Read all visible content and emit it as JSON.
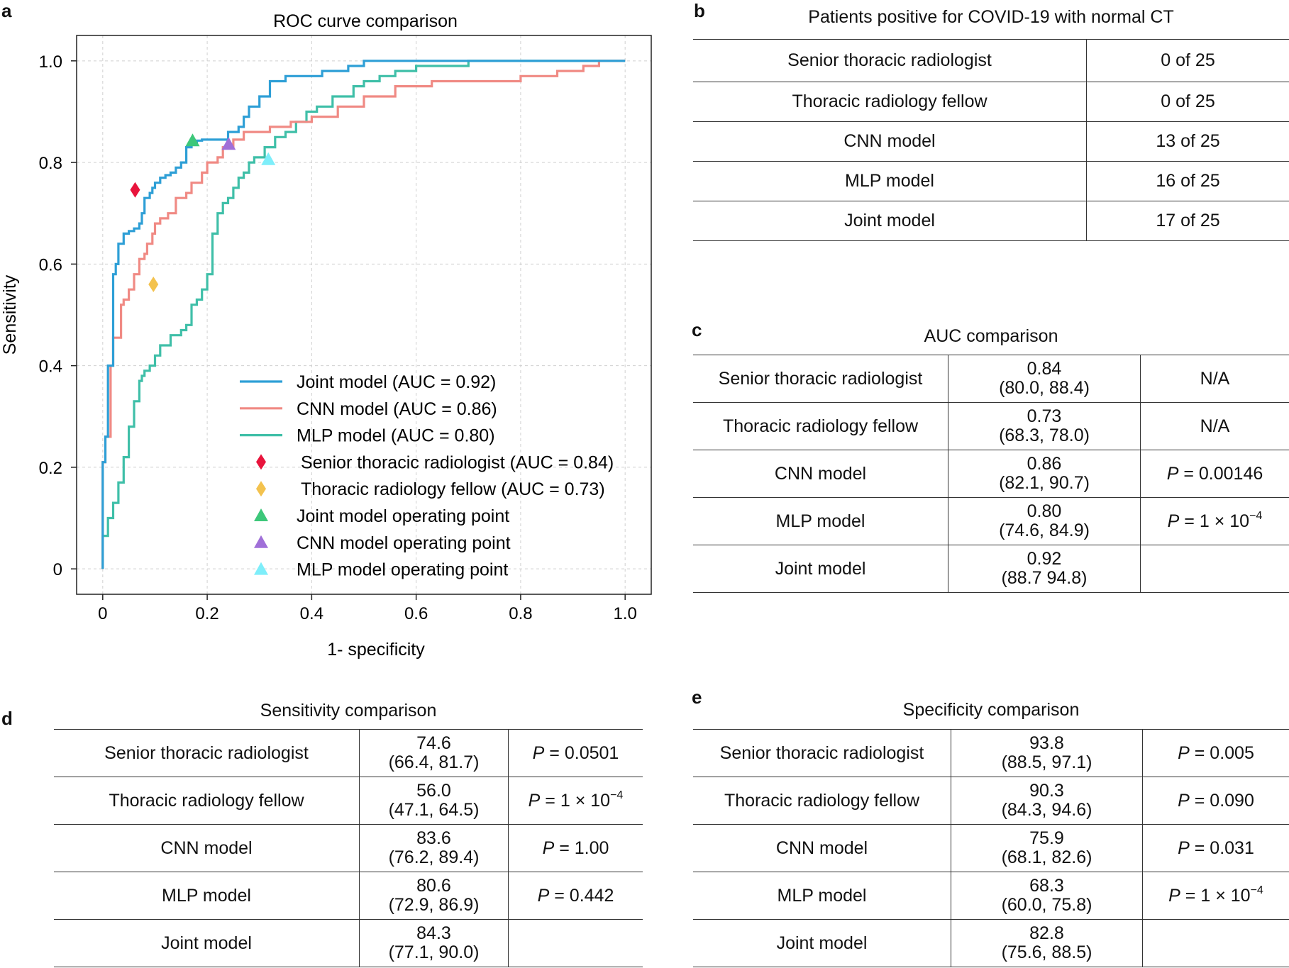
{
  "panels": {
    "a": "a",
    "b": "b",
    "c": "c",
    "d": "d",
    "e": "e"
  },
  "chart_data": {
    "type": "line",
    "title": "ROC curve comparison",
    "xlabel": "1- specificity",
    "ylabel": "Sensitivity",
    "xlim": [
      -0.05,
      1.05
    ],
    "ylim": [
      -0.05,
      1.05
    ],
    "xticks": [
      0,
      0.2,
      0.4,
      0.6,
      0.8,
      1.0
    ],
    "xtick_labels": [
      "0",
      "0.2",
      "0.4",
      "0.6",
      "0.8",
      "1.0"
    ],
    "yticks": [
      0,
      0.2,
      0.4,
      0.6,
      0.8,
      1.0
    ],
    "ytick_labels": [
      "0",
      "0.2",
      "0.4",
      "0.6",
      "0.8",
      "1.0"
    ],
    "grid": true,
    "legend_position": "lower-right",
    "series": [
      {
        "name": "Joint model (AUC = 0.92)",
        "color": "#2e9fd6",
        "x": [
          0,
          0,
          0.005,
          0.005,
          0.01,
          0.01,
          0.02,
          0.02,
          0.025,
          0.025,
          0.03,
          0.03,
          0.04,
          0.04,
          0.05,
          0.05,
          0.06,
          0.06,
          0.07,
          0.07,
          0.075,
          0.075,
          0.08,
          0.08,
          0.09,
          0.09,
          0.095,
          0.095,
          0.1,
          0.1,
          0.11,
          0.11,
          0.12,
          0.12,
          0.13,
          0.13,
          0.14,
          0.14,
          0.15,
          0.15,
          0.16,
          0.16,
          0.17,
          0.17,
          0.18,
          0.18,
          0.19,
          0.19,
          0.2,
          0.2,
          0.22,
          0.22,
          0.24,
          0.24,
          0.26,
          0.26,
          0.27,
          0.27,
          0.28,
          0.28,
          0.3,
          0.3,
          0.32,
          0.32,
          0.35,
          0.35,
          0.38,
          0.38,
          0.42,
          0.42,
          0.47,
          0.47,
          0.5,
          0.5,
          0.6,
          0.6,
          1.0
        ],
        "y": [
          0,
          0.21,
          0.21,
          0.26,
          0.26,
          0.4,
          0.4,
          0.58,
          0.58,
          0.6,
          0.6,
          0.64,
          0.64,
          0.66,
          0.66,
          0.665,
          0.665,
          0.67,
          0.67,
          0.68,
          0.68,
          0.7,
          0.7,
          0.73,
          0.73,
          0.74,
          0.74,
          0.75,
          0.75,
          0.76,
          0.76,
          0.77,
          0.77,
          0.775,
          0.775,
          0.78,
          0.78,
          0.79,
          0.79,
          0.8,
          0.8,
          0.83,
          0.83,
          0.84,
          0.84,
          0.843,
          0.843,
          0.845,
          0.845,
          0.845,
          0.845,
          0.845,
          0.845,
          0.86,
          0.86,
          0.87,
          0.87,
          0.89,
          0.89,
          0.91,
          0.91,
          0.93,
          0.93,
          0.96,
          0.96,
          0.97,
          0.97,
          0.97,
          0.97,
          0.98,
          0.98,
          0.99,
          0.99,
          1.0,
          1.0,
          1.0,
          1.0
        ]
      },
      {
        "name": "CNN model (AUC = 0.86)",
        "color": "#f08a84",
        "x": [
          0,
          0,
          0.005,
          0.005,
          0.015,
          0.015,
          0.02,
          0.02,
          0.035,
          0.035,
          0.04,
          0.04,
          0.05,
          0.05,
          0.06,
          0.06,
          0.07,
          0.07,
          0.08,
          0.08,
          0.085,
          0.085,
          0.095,
          0.095,
          0.1,
          0.1,
          0.11,
          0.11,
          0.125,
          0.125,
          0.14,
          0.14,
          0.16,
          0.16,
          0.17,
          0.17,
          0.19,
          0.19,
          0.2,
          0.2,
          0.22,
          0.22,
          0.23,
          0.23,
          0.25,
          0.25,
          0.27,
          0.27,
          0.29,
          0.29,
          0.32,
          0.32,
          0.36,
          0.36,
          0.4,
          0.4,
          0.45,
          0.45,
          0.5,
          0.5,
          0.56,
          0.56,
          0.63,
          0.63,
          0.73,
          0.73,
          0.8,
          0.8,
          0.87,
          0.87,
          0.92,
          0.92,
          0.95,
          0.95,
          1.0
        ],
        "y": [
          0,
          0.21,
          0.21,
          0.26,
          0.26,
          0.4,
          0.4,
          0.455,
          0.455,
          0.52,
          0.52,
          0.53,
          0.53,
          0.55,
          0.55,
          0.58,
          0.58,
          0.61,
          0.61,
          0.62,
          0.62,
          0.64,
          0.64,
          0.66,
          0.66,
          0.68,
          0.68,
          0.69,
          0.69,
          0.7,
          0.7,
          0.73,
          0.73,
          0.74,
          0.74,
          0.76,
          0.76,
          0.78,
          0.78,
          0.8,
          0.8,
          0.81,
          0.81,
          0.83,
          0.83,
          0.845,
          0.845,
          0.86,
          0.86,
          0.86,
          0.86,
          0.87,
          0.87,
          0.88,
          0.88,
          0.89,
          0.89,
          0.91,
          0.91,
          0.93,
          0.93,
          0.95,
          0.95,
          0.96,
          0.96,
          0.96,
          0.96,
          0.97,
          0.97,
          0.98,
          0.98,
          0.99,
          0.99,
          1.0,
          1.0
        ]
      },
      {
        "name": "MLP model (AUC = 0.80)",
        "color": "#3fbfa8",
        "x": [
          0,
          0,
          0.01,
          0.01,
          0.02,
          0.02,
          0.03,
          0.03,
          0.04,
          0.04,
          0.05,
          0.05,
          0.06,
          0.06,
          0.07,
          0.07,
          0.075,
          0.075,
          0.08,
          0.08,
          0.09,
          0.09,
          0.1,
          0.1,
          0.11,
          0.11,
          0.13,
          0.13,
          0.15,
          0.15,
          0.16,
          0.16,
          0.17,
          0.17,
          0.18,
          0.18,
          0.19,
          0.19,
          0.2,
          0.2,
          0.21,
          0.21,
          0.22,
          0.22,
          0.23,
          0.23,
          0.24,
          0.24,
          0.25,
          0.25,
          0.26,
          0.26,
          0.27,
          0.27,
          0.28,
          0.28,
          0.29,
          0.29,
          0.31,
          0.31,
          0.33,
          0.33,
          0.35,
          0.35,
          0.37,
          0.37,
          0.39,
          0.39,
          0.41,
          0.41,
          0.44,
          0.44,
          0.48,
          0.48,
          0.5,
          0.5,
          0.53,
          0.53,
          0.56,
          0.56,
          0.6,
          0.6,
          0.7,
          0.7,
          1.0
        ],
        "y": [
          0,
          0.065,
          0.065,
          0.1,
          0.1,
          0.13,
          0.13,
          0.17,
          0.17,
          0.22,
          0.22,
          0.28,
          0.28,
          0.33,
          0.33,
          0.37,
          0.37,
          0.38,
          0.38,
          0.39,
          0.39,
          0.4,
          0.4,
          0.42,
          0.42,
          0.44,
          0.44,
          0.46,
          0.46,
          0.47,
          0.47,
          0.48,
          0.48,
          0.52,
          0.52,
          0.53,
          0.53,
          0.55,
          0.55,
          0.58,
          0.58,
          0.66,
          0.66,
          0.7,
          0.7,
          0.72,
          0.72,
          0.73,
          0.73,
          0.75,
          0.75,
          0.77,
          0.77,
          0.78,
          0.78,
          0.8,
          0.8,
          0.81,
          0.81,
          0.83,
          0.83,
          0.85,
          0.85,
          0.86,
          0.86,
          0.88,
          0.88,
          0.9,
          0.9,
          0.91,
          0.91,
          0.93,
          0.93,
          0.95,
          0.95,
          0.96,
          0.96,
          0.97,
          0.97,
          0.98,
          0.98,
          0.99,
          0.99,
          1.0,
          1.0
        ]
      }
    ],
    "points": [
      {
        "name": "Senior thoracic radiologist (AUC = 0.84)",
        "shape": "diamond",
        "color": "#e8143c",
        "x": 0.062,
        "y": 0.746
      },
      {
        "name": "Thoracic radiology fellow (AUC = 0.73)",
        "shape": "diamond",
        "color": "#f3c24e",
        "x": 0.097,
        "y": 0.56
      },
      {
        "name": "Joint model operating point",
        "shape": "triangle",
        "color": "#3dc77a",
        "x": 0.172,
        "y": 0.843
      },
      {
        "name": "CNN model operating point",
        "shape": "triangle",
        "color": "#a070d8",
        "x": 0.241,
        "y": 0.836
      },
      {
        "name": "MLP model operating point",
        "shape": "triangle",
        "color": "#7eeefa",
        "x": 0.317,
        "y": 0.806
      }
    ]
  },
  "table_b": {
    "title": "Patients positive for COVID-19 with normal CT",
    "rows": [
      {
        "label": "Senior thoracic radiologist",
        "value": "0 of 25"
      },
      {
        "label": "Thoracic radiology fellow",
        "value": "0 of 25"
      },
      {
        "label": "CNN model",
        "value": "13 of 25"
      },
      {
        "label": "MLP model",
        "value": "16 of 25"
      },
      {
        "label": "Joint model",
        "value": "17 of 25"
      }
    ]
  },
  "table_c": {
    "title": "AUC comparison",
    "rows": [
      {
        "label": "Senior thoracic radiologist",
        "value": "0.84",
        "ci": "(80.0, 88.4)",
        "p": "N/A",
        "p_exp": ""
      },
      {
        "label": "Thoracic radiology fellow",
        "value": "0.73",
        "ci": "(68.3, 78.0)",
        "p": "N/A",
        "p_exp": ""
      },
      {
        "label": "CNN model",
        "value": "0.86",
        "ci": "(82.1, 90.7)",
        "p": "P = 0.00146",
        "p_exp": ""
      },
      {
        "label": "MLP model",
        "value": "0.80",
        "ci": "(74.6, 84.9)",
        "p": "P = 1 × 10",
        "p_exp": "−4"
      },
      {
        "label": "Joint model",
        "value": "0.92",
        "ci": "(88.7 94.8)",
        "p": "",
        "p_exp": ""
      }
    ]
  },
  "table_d": {
    "title": "Sensitivity comparison",
    "rows": [
      {
        "label": "Senior thoracic radiologist",
        "value": "74.6",
        "ci": "(66.4, 81.7)",
        "p": "P = 0.0501",
        "p_exp": ""
      },
      {
        "label": "Thoracic radiology fellow",
        "value": "56.0",
        "ci": "(47.1, 64.5)",
        "p": "P = 1 × 10",
        "p_exp": "−4"
      },
      {
        "label": "CNN model",
        "value": "83.6",
        "ci": "(76.2, 89.4)",
        "p": "P = 1.00",
        "p_exp": ""
      },
      {
        "label": "MLP model",
        "value": "80.6",
        "ci": "(72.9, 86.9)",
        "p": "P = 0.442",
        "p_exp": ""
      },
      {
        "label": "Joint model",
        "value": "84.3",
        "ci": "(77.1, 90.0)",
        "p": "",
        "p_exp": ""
      }
    ]
  },
  "table_e": {
    "title": "Specificity comparison",
    "rows": [
      {
        "label": "Senior thoracic radiologist",
        "value": "93.8",
        "ci": "(88.5, 97.1)",
        "p": "P = 0.005",
        "p_exp": ""
      },
      {
        "label": "Thoracic radiology fellow",
        "value": "90.3",
        "ci": "(84.3, 94.6)",
        "p": "P = 0.090",
        "p_exp": ""
      },
      {
        "label": "CNN model",
        "value": "75.9",
        "ci": "(68.1, 82.6)",
        "p": "P = 0.031",
        "p_exp": ""
      },
      {
        "label": "MLP model",
        "value": "68.3",
        "ci": "(60.0, 75.8)",
        "p": "P = 1 × 10",
        "p_exp": "−4"
      },
      {
        "label": "Joint model",
        "value": "82.8",
        "ci": "(75.6, 88.5)",
        "p": "",
        "p_exp": ""
      }
    ]
  }
}
